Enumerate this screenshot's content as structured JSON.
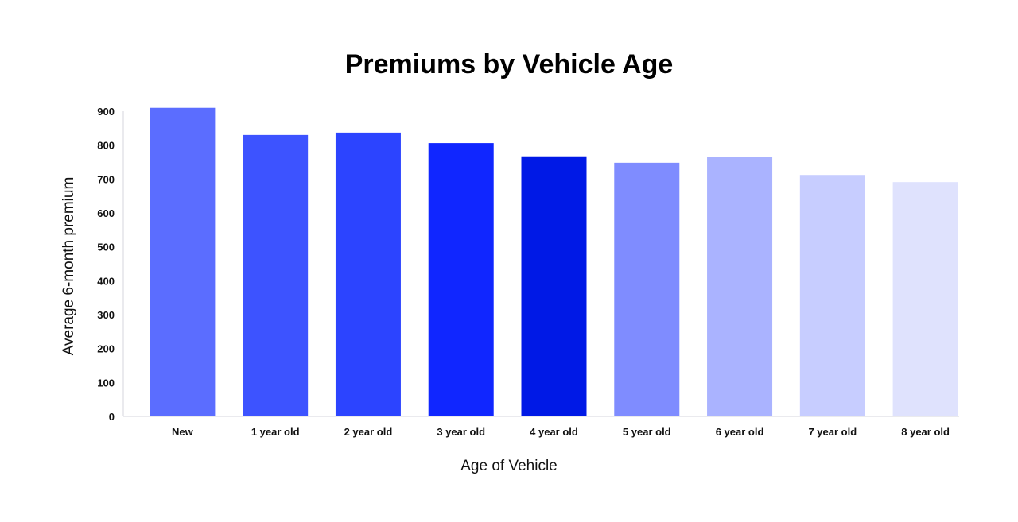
{
  "chart_data": {
    "type": "bar",
    "title": "Premiums by Vehicle Age",
    "xlabel": "Age of Vehicle",
    "ylabel": "Average 6-month premium",
    "categories": [
      "New",
      "1 year old",
      "2 year old",
      "3 year old",
      "4 year old",
      "5 year old",
      "6 year old",
      "7 year old",
      "8 year old"
    ],
    "values": [
      910,
      830,
      837,
      806,
      767,
      748,
      766,
      712,
      691
    ],
    "bar_colors": [
      "#5b6dff",
      "#3d53ff",
      "#2c44ff",
      "#1026ff",
      "#0019e6",
      "#7f8cff",
      "#aab3ff",
      "#c7cdff",
      "#dfe2fd"
    ],
    "ylim": [
      0,
      900
    ],
    "yticks": [
      0,
      100,
      200,
      300,
      400,
      500,
      600,
      700,
      800,
      900
    ],
    "grid": false,
    "legend": "none"
  }
}
